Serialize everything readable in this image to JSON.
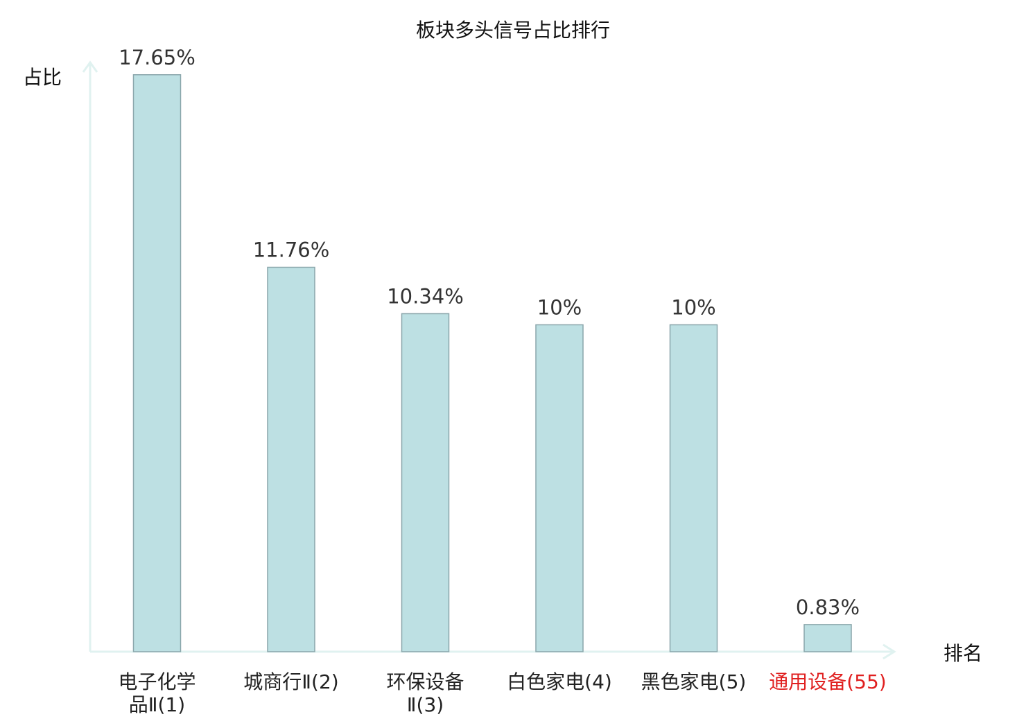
{
  "chart_data": {
    "type": "bar",
    "title": "板块多头信号占比排行",
    "ylabel": "占比",
    "xlabel": "排名",
    "ylim": [
      0,
      20
    ],
    "grid": false,
    "unit": "%",
    "categories": [
      [
        "电子化学",
        "品Ⅱ(1)"
      ],
      [
        "城商行Ⅱ(2)"
      ],
      [
        "环保设备",
        "Ⅱ(3)"
      ],
      [
        "白色家电(4)"
      ],
      [
        "黑色家电(5)"
      ],
      [
        "通用设备(55)"
      ]
    ],
    "values": [
      17.65,
      11.76,
      10.34,
      10,
      10,
      0.83
    ],
    "value_labels": [
      "17.65%",
      "11.76%",
      "10.34%",
      "10%",
      "10%",
      "0.83%"
    ],
    "highlight_index": 5
  },
  "colors": {
    "bar_fill": "#bde0e3",
    "bar_stroke": "#8aa6ab",
    "axis": "#e0f2f0",
    "highlight_text": "#e02020",
    "text": "#222222"
  }
}
